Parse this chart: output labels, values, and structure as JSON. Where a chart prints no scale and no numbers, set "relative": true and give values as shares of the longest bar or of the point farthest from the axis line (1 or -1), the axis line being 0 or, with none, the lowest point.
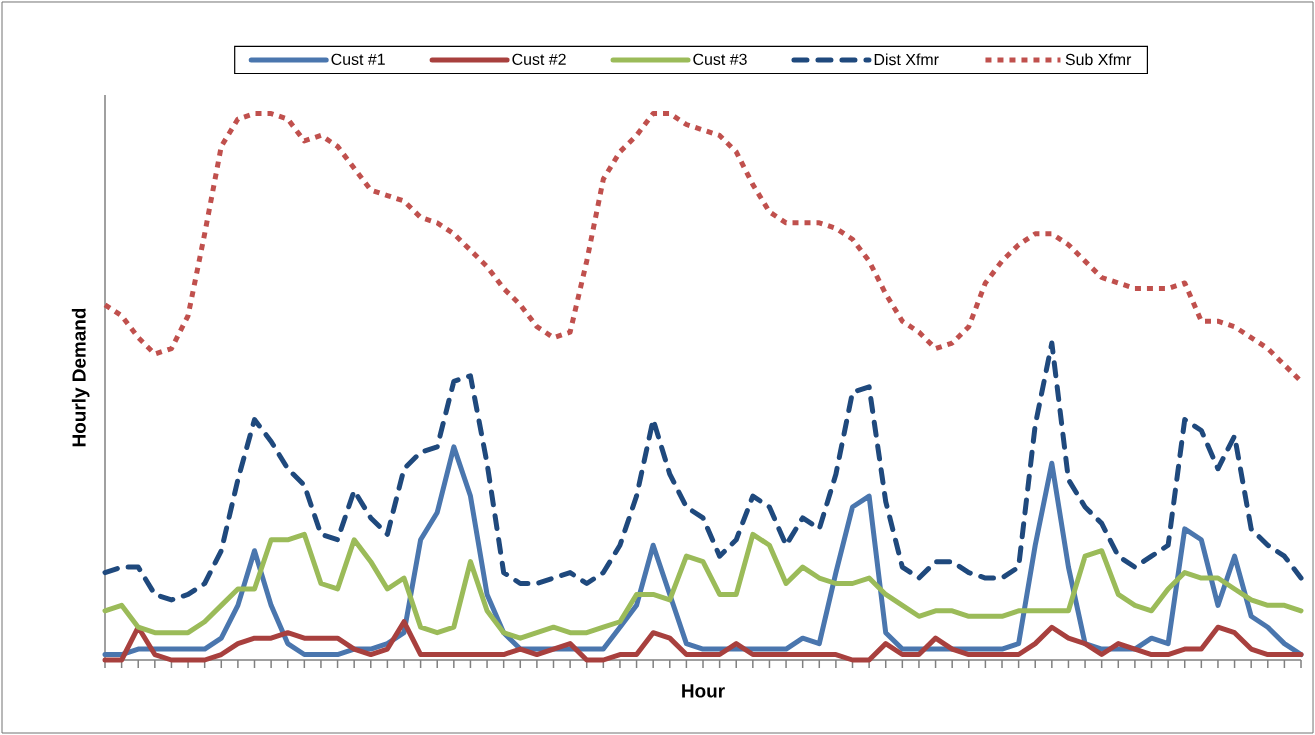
{
  "chart_data": {
    "type": "line",
    "relative": true,
    "xlabel": "Hour",
    "ylabel": "Hourly Demand",
    "legend": "top",
    "categories": [
      null,
      null,
      null,
      null,
      null,
      null,
      null,
      null,
      null,
      null,
      null,
      null,
      null,
      null,
      null,
      null,
      null,
      null,
      null,
      null,
      null,
      null,
      null,
      null,
      null,
      null,
      null,
      null,
      null,
      null,
      null,
      null,
      null,
      null,
      null,
      null,
      null,
      null,
      null,
      null,
      null,
      null,
      null,
      null,
      null,
      null,
      null,
      null,
      null,
      null,
      null,
      null,
      null,
      null,
      null,
      null,
      null,
      null,
      null,
      null,
      null,
      null,
      null,
      null,
      null,
      null,
      null,
      null,
      null,
      null,
      null,
      null,
      null
    ],
    "series": [
      {
        "name": "Cust #1",
        "color": "#4a76ae",
        "line_style": "solid",
        "values": [
          0.01,
          0.01,
          0.02,
          0.02,
          0.02,
          0.02,
          0.02,
          0.04,
          0.1,
          0.2,
          0.1,
          0.03,
          0.01,
          0.01,
          0.01,
          0.02,
          0.02,
          0.03,
          0.05,
          0.22,
          0.27,
          0.39,
          0.3,
          0.12,
          0.05,
          0.02,
          0.02,
          0.02,
          0.02,
          0.02,
          0.02,
          0.06,
          0.1,
          0.21,
          0.12,
          0.03,
          0.02,
          0.02,
          0.02,
          0.02,
          0.02,
          0.02,
          0.04,
          0.03,
          0.16,
          0.28,
          0.3,
          0.05,
          0.02,
          0.02,
          0.02,
          0.02,
          0.02,
          0.02,
          0.02,
          0.03,
          0.21,
          0.36,
          0.17,
          0.03,
          0.02,
          0.02,
          0.02,
          0.04,
          0.03,
          0.24,
          0.22,
          0.1,
          0.19,
          0.08,
          0.06,
          0.03,
          0.01
        ]
      },
      {
        "name": "Cust #2",
        "color": "#a8403e",
        "line_style": "solid",
        "values": [
          0,
          0,
          0.06,
          0.01,
          0,
          0,
          0,
          0.01,
          0.03,
          0.04,
          0.04,
          0.05,
          0.04,
          0.04,
          0.04,
          0.02,
          0.01,
          0.02,
          0.07,
          0.01,
          0.01,
          0.01,
          0.01,
          0.01,
          0.01,
          0.02,
          0.01,
          0.02,
          0.03,
          0,
          0,
          0.01,
          0.01,
          0.05,
          0.04,
          0.01,
          0.01,
          0.01,
          0.03,
          0.01,
          0.01,
          0.01,
          0.01,
          0.01,
          0.01,
          0,
          0,
          0.03,
          0.01,
          0.01,
          0.04,
          0.02,
          0.01,
          0.01,
          0.01,
          0.01,
          0.03,
          0.06,
          0.04,
          0.03,
          0.01,
          0.03,
          0.02,
          0.01,
          0.01,
          0.02,
          0.02,
          0.06,
          0.05,
          0.02,
          0.01,
          0.01,
          0.01
        ]
      },
      {
        "name": "Cust #3",
        "color": "#9bbb59",
        "line_style": "solid",
        "values": [
          0.09,
          0.1,
          0.06,
          0.05,
          0.05,
          0.05,
          0.07,
          0.1,
          0.13,
          0.13,
          0.22,
          0.22,
          0.23,
          0.14,
          0.13,
          0.22,
          0.18,
          0.13,
          0.15,
          0.06,
          0.05,
          0.06,
          0.18,
          0.09,
          0.05,
          0.04,
          0.05,
          0.06,
          0.05,
          0.05,
          0.06,
          0.07,
          0.12,
          0.12,
          0.11,
          0.19,
          0.18,
          0.12,
          0.12,
          0.23,
          0.21,
          0.14,
          0.17,
          0.15,
          0.14,
          0.14,
          0.15,
          0.12,
          0.1,
          0.08,
          0.09,
          0.09,
          0.08,
          0.08,
          0.08,
          0.09,
          0.09,
          0.09,
          0.09,
          0.19,
          0.2,
          0.12,
          0.1,
          0.09,
          0.13,
          0.16,
          0.15,
          0.15,
          0.13,
          0.11,
          0.1,
          0.1,
          0.09
        ]
      },
      {
        "name": "Dist Xfmr",
        "color": "#1f497d",
        "line_style": "dashed",
        "values": [
          0.16,
          0.17,
          0.17,
          0.12,
          0.11,
          0.12,
          0.14,
          0.2,
          0.33,
          0.44,
          0.4,
          0.35,
          0.32,
          0.23,
          0.22,
          0.31,
          0.26,
          0.23,
          0.35,
          0.38,
          0.39,
          0.51,
          0.52,
          0.36,
          0.16,
          0.14,
          0.14,
          0.15,
          0.16,
          0.14,
          0.16,
          0.21,
          0.3,
          0.44,
          0.34,
          0.28,
          0.26,
          0.19,
          0.22,
          0.3,
          0.28,
          0.21,
          0.26,
          0.24,
          0.34,
          0.49,
          0.5,
          0.29,
          0.17,
          0.15,
          0.18,
          0.18,
          0.16,
          0.15,
          0.15,
          0.17,
          0.43,
          0.58,
          0.33,
          0.28,
          0.25,
          0.19,
          0.17,
          0.19,
          0.21,
          0.44,
          0.42,
          0.35,
          0.41,
          0.24,
          0.21,
          0.19,
          0.15
        ]
      },
      {
        "name": "Sub Xfmr",
        "color": "#c0504d",
        "line_style": "dotted",
        "values": [
          0.65,
          0.63,
          0.59,
          0.56,
          0.57,
          0.63,
          0.78,
          0.94,
          0.99,
          1.0,
          1.0,
          0.99,
          0.95,
          0.96,
          0.94,
          0.9,
          0.86,
          0.85,
          0.84,
          0.81,
          0.8,
          0.78,
          0.75,
          0.72,
          0.68,
          0.65,
          0.61,
          0.59,
          0.6,
          0.73,
          0.88,
          0.93,
          0.96,
          1.0,
          1.0,
          0.98,
          0.97,
          0.96,
          0.93,
          0.87,
          0.82,
          0.8,
          0.8,
          0.8,
          0.79,
          0.77,
          0.73,
          0.67,
          0.62,
          0.6,
          0.57,
          0.58,
          0.61,
          0.69,
          0.73,
          0.76,
          0.78,
          0.78,
          0.76,
          0.73,
          0.7,
          0.69,
          0.68,
          0.68,
          0.68,
          0.69,
          0.62,
          0.62,
          0.61,
          0.59,
          0.57,
          0.54,
          0.51
        ]
      }
    ]
  }
}
